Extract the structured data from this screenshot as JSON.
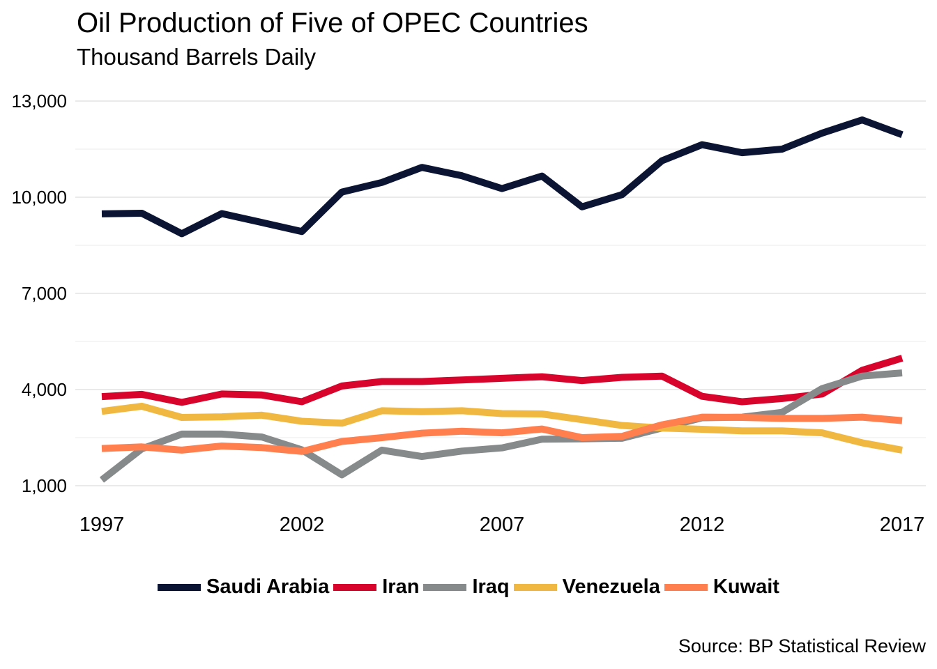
{
  "chart_data": {
    "type": "line",
    "title": "Oil Production of Five of OPEC Countries",
    "subtitle": "Thousand Barrels Daily",
    "caption": "Source: BP Statistical Review",
    "xlabel": "",
    "ylabel": "",
    "xlim": [
      1997,
      2017
    ],
    "ylim": [
      1000,
      13000
    ],
    "x_ticks": [
      1997,
      2002,
      2007,
      2012,
      2017
    ],
    "y_ticks": [
      1000,
      4000,
      7000,
      10000,
      13000
    ],
    "y_tick_labels": [
      "1,000",
      "4,000",
      "7,000",
      "10,000",
      "13,000"
    ],
    "grid": true,
    "legend_position": "bottom",
    "x": [
      1997,
      1998,
      1999,
      2000,
      2001,
      2002,
      2003,
      2004,
      2005,
      2006,
      2007,
      2008,
      2009,
      2010,
      2011,
      2012,
      2013,
      2014,
      2015,
      2016,
      2017
    ],
    "series": [
      {
        "name": "Saudi Arabia",
        "color": "#0b1533",
        "values": [
          9480,
          9500,
          8860,
          9490,
          9210,
          8930,
          10160,
          10460,
          10930,
          10670,
          10270,
          10660,
          9700,
          10080,
          11140,
          11640,
          11390,
          11500,
          12000,
          12410,
          11950
        ]
      },
      {
        "name": "Iran",
        "color": "#d9042b",
        "values": [
          3780,
          3850,
          3600,
          3860,
          3830,
          3620,
          4110,
          4250,
          4250,
          4300,
          4350,
          4400,
          4280,
          4380,
          4420,
          3790,
          3620,
          3720,
          3860,
          4600,
          4980
        ]
      },
      {
        "name": "Iraq",
        "color": "#868a8b",
        "values": [
          1180,
          2150,
          2610,
          2610,
          2520,
          2120,
          1340,
          2110,
          1910,
          2080,
          2180,
          2450,
          2460,
          2480,
          2800,
          3120,
          3140,
          3290,
          4030,
          4420,
          4520
        ]
      },
      {
        "name": "Venezuela",
        "color": "#f0b840",
        "values": [
          3320,
          3480,
          3130,
          3150,
          3200,
          3010,
          2950,
          3340,
          3310,
          3340,
          3250,
          3240,
          3060,
          2880,
          2800,
          2760,
          2710,
          2710,
          2650,
          2340,
          2110
        ]
      },
      {
        "name": "Kuwait",
        "color": "#ff7f4f",
        "values": [
          2160,
          2210,
          2110,
          2240,
          2190,
          2070,
          2380,
          2500,
          2640,
          2700,
          2650,
          2770,
          2500,
          2540,
          2900,
          3140,
          3130,
          3100,
          3100,
          3140,
          3030
        ]
      }
    ]
  }
}
